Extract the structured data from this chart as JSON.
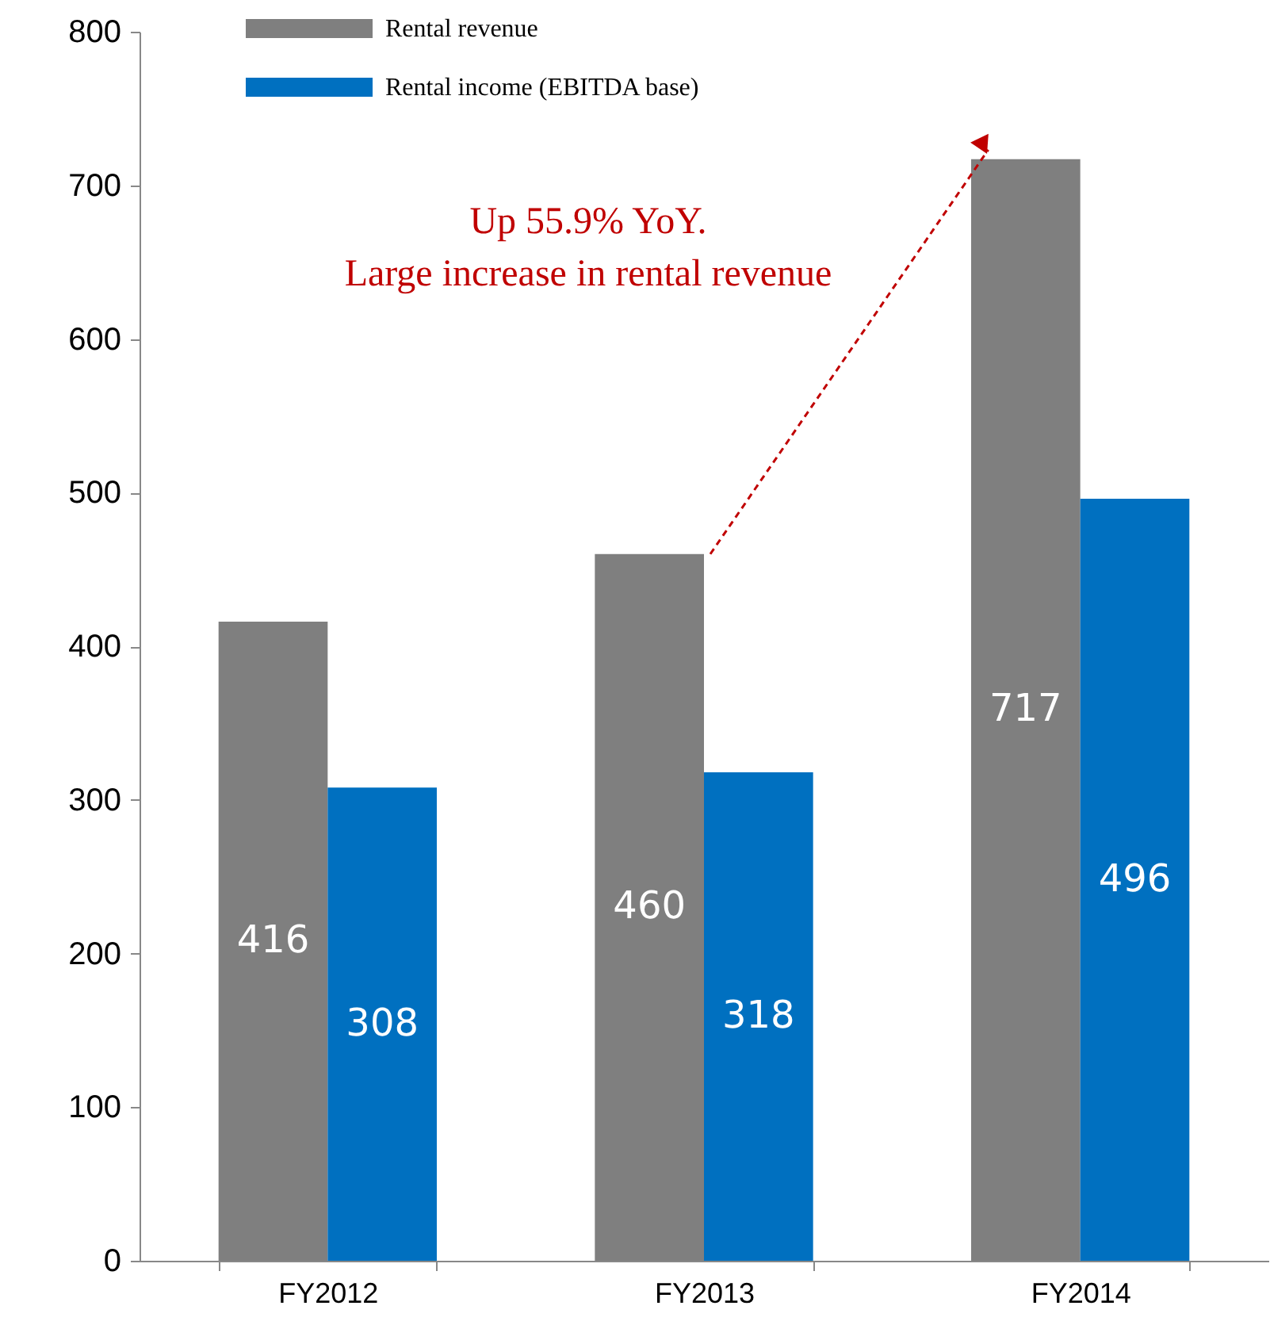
{
  "chart_data": {
    "type": "bar",
    "categories": [
      "FY2012",
      "FY2013",
      "FY2014"
    ],
    "series": [
      {
        "name": "Rental revenue",
        "color": "#7f7f7f",
        "values": [
          416,
          460,
          717
        ]
      },
      {
        "name": "Rental income (EBITDA base)",
        "color": "#0070c0",
        "values": [
          308,
          318,
          496
        ]
      }
    ],
    "ylim": [
      0,
      800
    ],
    "yticks": [
      0,
      100,
      200,
      300,
      400,
      500,
      600,
      700,
      800
    ],
    "grid": false,
    "legend": "top left",
    "data_labels": true,
    "annotations": [
      "Up 55.9% YoY.",
      "Large increase in rental revenue"
    ]
  }
}
